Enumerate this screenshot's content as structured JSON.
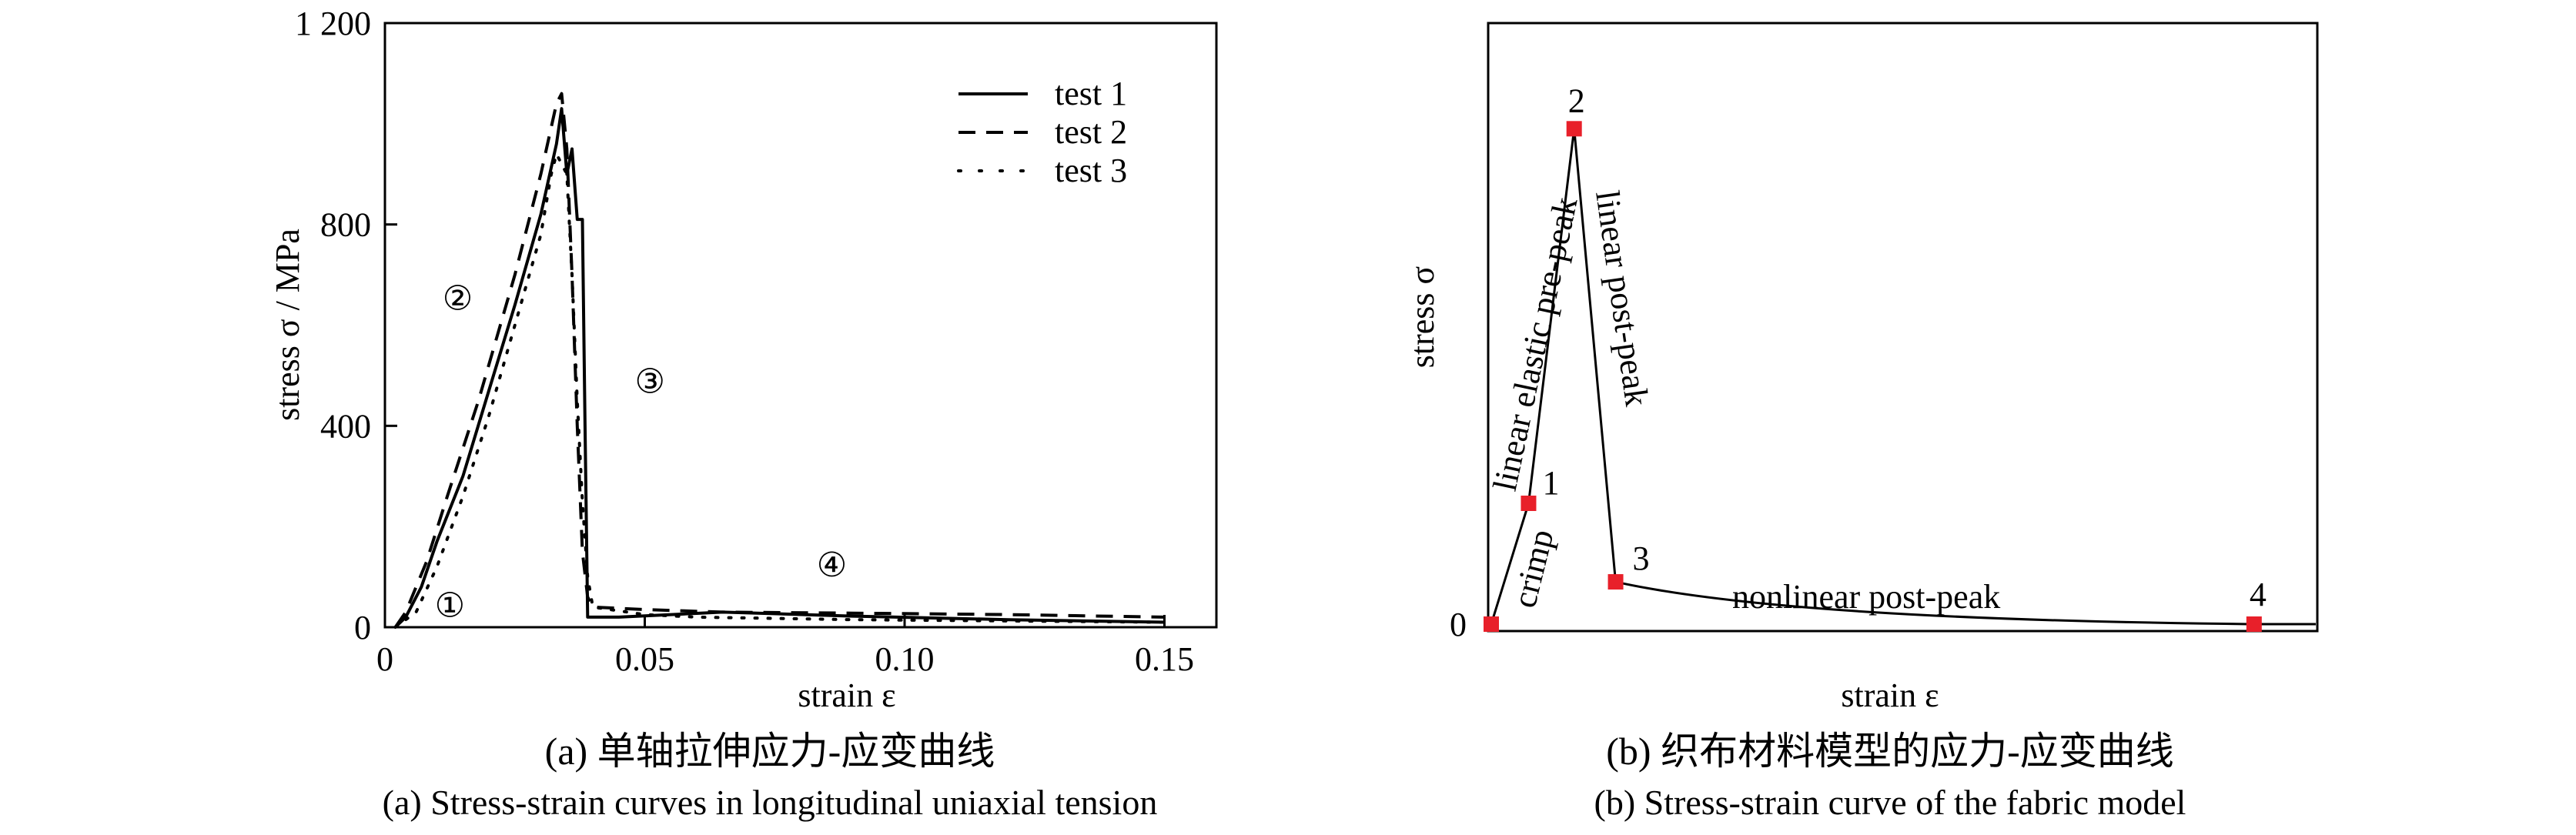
{
  "chart_data": [
    {
      "type": "line",
      "caption_cn": "(a) 单轴拉伸应力-应变曲线",
      "caption_en": "(a) Stress-strain curves in longitudinal uniaxial tension",
      "xlabel": "strain ε",
      "ylabel": "stress σ / MPa",
      "xlim": [
        0,
        0.16
      ],
      "ylim": [
        0,
        1200
      ],
      "xticks": [
        0,
        0.05,
        0.1,
        0.15
      ],
      "xtick_labels": [
        "0",
        "0.05",
        "0.10",
        "0.15"
      ],
      "yticks": [
        0,
        400,
        800,
        1200
      ],
      "ytick_labels": [
        "0",
        "400",
        "800",
        "1 200"
      ],
      "legend_position": "top-right",
      "series": [
        {
          "name": "test 1",
          "style": "solid",
          "points": [
            [
              0.002,
              0
            ],
            [
              0.004,
              20
            ],
            [
              0.007,
              80
            ],
            [
              0.01,
              170
            ],
            [
              0.015,
              300
            ],
            [
              0.02,
              470
            ],
            [
              0.025,
              640
            ],
            [
              0.03,
              820
            ],
            [
              0.033,
              960
            ],
            [
              0.034,
              1030
            ],
            [
              0.035,
              900
            ],
            [
              0.036,
              950
            ],
            [
              0.037,
              810
            ],
            [
              0.038,
              810
            ],
            [
              0.0385,
              400
            ],
            [
              0.039,
              20
            ],
            [
              0.045,
              20
            ],
            [
              0.065,
              30
            ],
            [
              0.09,
              22
            ],
            [
              0.12,
              15
            ],
            [
              0.15,
              10
            ]
          ]
        },
        {
          "name": "test 2",
          "style": "dashed",
          "points": [
            [
              0.002,
              0
            ],
            [
              0.004,
              30
            ],
            [
              0.008,
              130
            ],
            [
              0.012,
              260
            ],
            [
              0.018,
              450
            ],
            [
              0.025,
              700
            ],
            [
              0.03,
              900
            ],
            [
              0.033,
              1040
            ],
            [
              0.034,
              1060
            ],
            [
              0.035,
              950
            ],
            [
              0.036,
              700
            ],
            [
              0.037,
              400
            ],
            [
              0.038,
              150
            ],
            [
              0.039,
              60
            ],
            [
              0.04,
              40
            ],
            [
              0.05,
              35
            ],
            [
              0.065,
              30
            ],
            [
              0.09,
              28
            ],
            [
              0.12,
              25
            ],
            [
              0.15,
              20
            ]
          ]
        },
        {
          "name": "test 3",
          "style": "dotted",
          "points": [
            [
              0.002,
              0
            ],
            [
              0.006,
              30
            ],
            [
              0.01,
              120
            ],
            [
              0.015,
              260
            ],
            [
              0.02,
              420
            ],
            [
              0.025,
              600
            ],
            [
              0.03,
              780
            ],
            [
              0.032,
              900
            ],
            [
              0.033,
              940
            ],
            [
              0.035,
              900
            ],
            [
              0.036,
              700
            ],
            [
              0.037,
              450
            ],
            [
              0.038,
              250
            ],
            [
              0.039,
              100
            ],
            [
              0.04,
              40
            ],
            [
              0.05,
              25
            ],
            [
              0.06,
              20
            ],
            [
              0.09,
              15
            ],
            [
              0.15,
              10
            ]
          ]
        }
      ],
      "annotations": [
        {
          "label": "①",
          "x": 0.0125,
          "y": 45
        },
        {
          "label": "②",
          "x": 0.014,
          "y": 655
        },
        {
          "label": "③",
          "x": 0.051,
          "y": 490
        },
        {
          "label": "④",
          "x": 0.086,
          "y": 125
        }
      ]
    },
    {
      "type": "line",
      "caption_cn": "(b) 织布材料模型的应力-应变曲线",
      "caption_en": "(b) Stress-strain curve of the fabric model",
      "xlabel": "strain ε",
      "ylabel": "stress σ",
      "y_origin_label": "0",
      "marker_color": "#e8202a",
      "points": [
        {
          "label": "0",
          "x": 0.0,
          "y": 0.0
        },
        {
          "label": "1",
          "x": 0.045,
          "y": 0.2
        },
        {
          "label": "2",
          "x": 0.1,
          "y": 0.82
        },
        {
          "label": "3",
          "x": 0.15,
          "y": 0.07
        },
        {
          "label": "4",
          "x": 0.92,
          "y": 0.0
        }
      ],
      "segment_labels": [
        "crimp",
        "linear elastic pre-peak",
        "linear post-peak",
        "nonlinear post-peak"
      ]
    }
  ]
}
